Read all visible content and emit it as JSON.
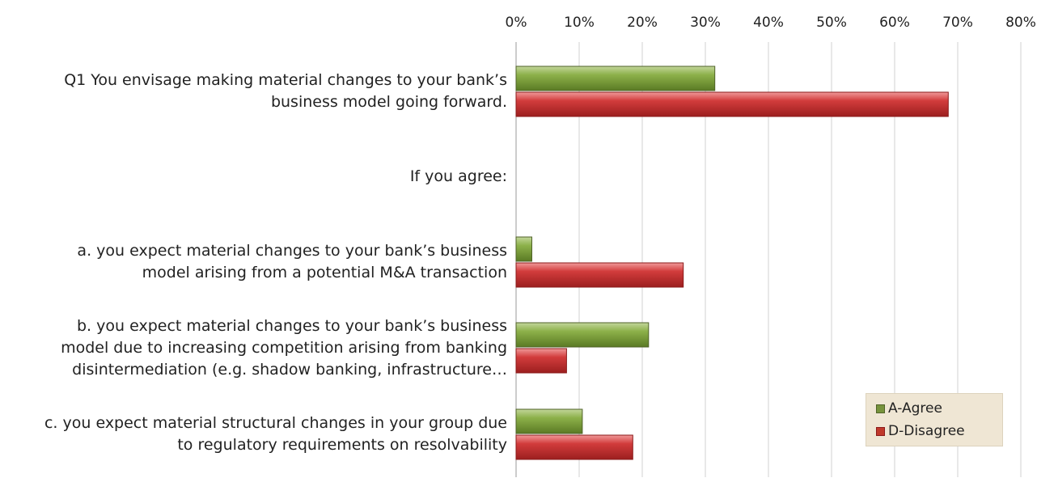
{
  "chart_data": {
    "type": "bar",
    "orientation": "horizontal",
    "categories": [
      [
        "Q1 You envisage making material changes to your bank’s",
        "business model going forward."
      ],
      [
        "If you agree:"
      ],
      [
        "a. you expect material changes to your bank’s business",
        "model arising from a potential M&A transaction"
      ],
      [
        "b. you expect material changes to your bank’s business",
        "model due to increasing competition arising from banking",
        "disintermediation (e.g. shadow banking, infrastructure…"
      ],
      [
        "c. you expect material structural changes in your group due",
        "to regulatory requirements on resolvability"
      ]
    ],
    "series": [
      {
        "name": "A-Agree",
        "color": "#77933c",
        "values": [
          31.5,
          null,
          2.5,
          21,
          10.5
        ]
      },
      {
        "name": "D-Disagree",
        "color": "#c0392b",
        "values": [
          68.5,
          null,
          26.5,
          8,
          18.5
        ]
      }
    ],
    "xlim": [
      0,
      80
    ],
    "xticks": [
      "0%",
      "10%",
      "20%",
      "30%",
      "40%",
      "50%",
      "60%",
      "70%",
      "80%"
    ],
    "grid": "vertical",
    "axis_position": "top",
    "legend": {
      "position": "bottom-right",
      "entries": [
        "A-Agree",
        "D-Disagree"
      ]
    }
  }
}
